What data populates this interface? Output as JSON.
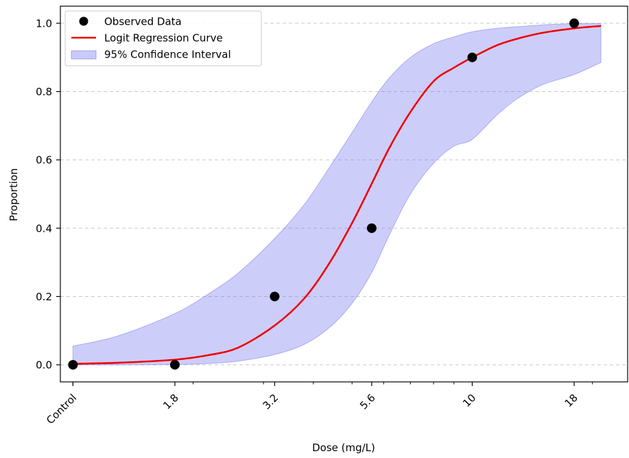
{
  "chart_data": {
    "type": "scatter",
    "xlabel": "Dose (mg/L)",
    "ylabel": "Proportion",
    "x_scale": "log",
    "x_ticks": [
      {
        "value": 1.0,
        "label": "Control"
      },
      {
        "value": 1.8,
        "label": "1.8"
      },
      {
        "value": 3.2,
        "label": "3.2"
      },
      {
        "value": 5.6,
        "label": "5.6"
      },
      {
        "value": 10,
        "label": "10"
      },
      {
        "value": 18,
        "label": "18"
      }
    ],
    "xlim": [
      0.93,
      24.5
    ],
    "y_ticks": [
      {
        "value": 0.0,
        "label": "0.0"
      },
      {
        "value": 0.2,
        "label": "0.2"
      },
      {
        "value": 0.4,
        "label": "0.4"
      },
      {
        "value": 0.6,
        "label": "0.6"
      },
      {
        "value": 0.8,
        "label": "0.8"
      },
      {
        "value": 1.0,
        "label": "1.0"
      }
    ],
    "ylim": [
      -0.05,
      1.05
    ],
    "grid": "y-dashed",
    "legend_position": "top-left",
    "legend": [
      "Observed Data",
      "Logit Regression Curve",
      "95% Confidence Interval"
    ],
    "series": [
      {
        "name": "Observed Data",
        "kind": "scatter",
        "color": "#000000",
        "x": [
          1.0,
          1.8,
          3.2,
          5.6,
          10,
          18
        ],
        "y": [
          0.0,
          0.0,
          0.2,
          0.4,
          0.9,
          1.0
        ]
      },
      {
        "name": "Logit Regression Curve",
        "kind": "line",
        "color": "#ee0000",
        "x": [
          1.0,
          1.3,
          1.8,
          2.2,
          2.6,
          3.2,
          3.8,
          4.4,
          5.0,
          5.6,
          6.2,
          7.0,
          8.0,
          9.0,
          10,
          11.5,
          13,
          15,
          18,
          21
        ],
        "y": [
          0.003,
          0.006,
          0.015,
          0.029,
          0.051,
          0.115,
          0.195,
          0.3,
          0.415,
          0.53,
          0.635,
          0.74,
          0.83,
          0.87,
          0.9,
          0.935,
          0.955,
          0.972,
          0.985,
          0.992
        ]
      },
      {
        "name": "95% Confidence Interval",
        "kind": "band",
        "color": "#6666ee",
        "x": [
          1.0,
          1.3,
          1.8,
          2.2,
          2.6,
          3.2,
          3.8,
          4.4,
          5.0,
          5.6,
          6.2,
          7.0,
          8.0,
          9.0,
          10,
          11.5,
          13,
          15,
          18,
          21
        ],
        "lower": [
          0.0,
          0.0,
          0.001,
          0.004,
          0.011,
          0.03,
          0.06,
          0.11,
          0.18,
          0.27,
          0.38,
          0.5,
          0.59,
          0.64,
          0.66,
          0.73,
          0.78,
          0.82,
          0.85,
          0.885
        ],
        "upper": [
          0.055,
          0.085,
          0.15,
          0.21,
          0.27,
          0.37,
          0.47,
          0.58,
          0.68,
          0.77,
          0.84,
          0.9,
          0.94,
          0.96,
          0.975,
          0.985,
          0.99,
          0.995,
          0.999,
          0.999
        ]
      }
    ]
  },
  "colors": {
    "band_fill": "#6666ee",
    "band_edge": "#6666ee",
    "curve": "#ee0000",
    "points": "#000000",
    "grid": "#b0b0b0"
  }
}
